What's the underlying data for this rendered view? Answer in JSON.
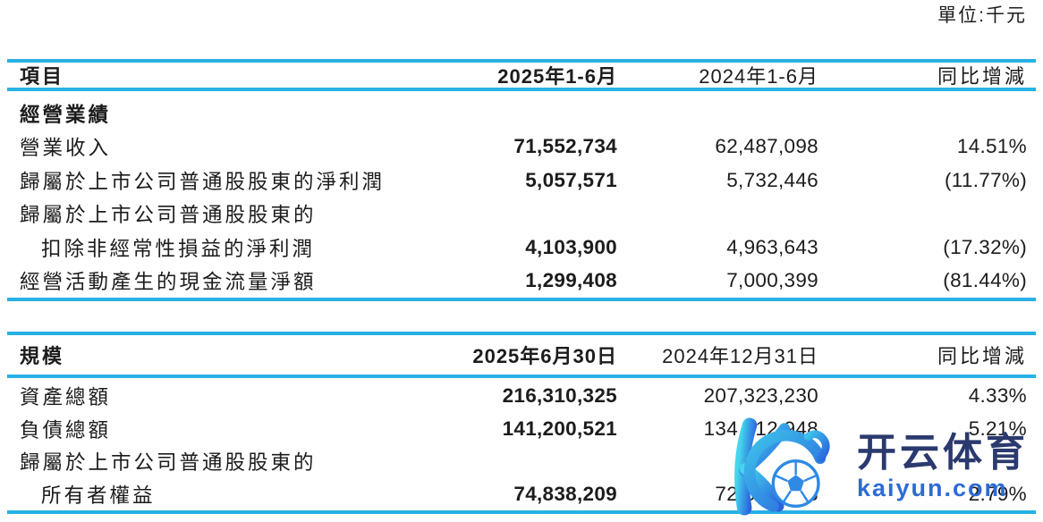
{
  "page": {
    "unit_label": "單位:千元"
  },
  "colors": {
    "rule_cyan": "#27b1e4",
    "text": "#1c1c1c",
    "watermark_brand_blue": "#2b3a6e",
    "watermark_domain_blue": "#2e6bd3",
    "logo_gradient_start": "#45d6ec",
    "logo_gradient_end": "#2a63dd"
  },
  "table1": {
    "col_item": "項目",
    "col_current": "2025年1-6月",
    "col_prior": "2024年1-6月",
    "col_yoy": "同比增減",
    "section_title": "經營業績",
    "rows": [
      {
        "label": "營業收入",
        "indent": false,
        "current": "71,552,734",
        "prior": "62,487,098",
        "yoy": "14.51%"
      },
      {
        "label": "歸屬於上市公司普通股股東的淨利潤",
        "indent": false,
        "current": "5,057,571",
        "prior": "5,732,446",
        "yoy": "(11.77%)"
      },
      {
        "label": "歸屬於上市公司普通股股東的",
        "indent": false,
        "current": "",
        "prior": "",
        "yoy": ""
      },
      {
        "label": "扣除非經常性損益的淨利潤",
        "indent": true,
        "current": "4,103,900",
        "prior": "4,963,643",
        "yoy": "(17.32%)"
      },
      {
        "label": "經營活動產生的現金流量淨額",
        "indent": false,
        "current": "1,299,408",
        "prior": "7,000,399",
        "yoy": "(81.44%)"
      }
    ]
  },
  "table2": {
    "col_item": "規模",
    "col_current": "2025年6月30日",
    "col_prior": "2024年12月31日",
    "col_yoy": "同比增減",
    "rows": [
      {
        "label": "資產總額",
        "indent": false,
        "current": "216,310,325",
        "prior": "207,323,230",
        "yoy": "4.33%"
      },
      {
        "label": "負債總額",
        "indent": false,
        "current": "141,200,521",
        "prior": "134,212,948",
        "yoy": "5.21%"
      },
      {
        "label": "歸屬於上市公司普通股股東的",
        "indent": false,
        "current": "",
        "prior": "",
        "yoy": ""
      },
      {
        "label": "所有者權益",
        "indent": true,
        "current": "74,838,209",
        "prior": "72,808,433",
        "yoy": "2.79%"
      }
    ]
  },
  "watermark": {
    "brand": "开云体育",
    "domain": "kaiyun.com",
    "logo": "kaiyun-k-with-soccer-ball"
  }
}
